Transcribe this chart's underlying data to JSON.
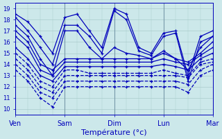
{
  "title": "",
  "xlabel": "Température (°c)",
  "ylabel": "",
  "xlim": [
    0,
    96
  ],
  "ylim": [
    9.5,
    19.5
  ],
  "yticks": [
    10,
    11,
    12,
    13,
    14,
    15,
    16,
    17,
    18,
    19
  ],
  "xtick_positions": [
    0,
    24,
    48,
    72,
    96
  ],
  "xtick_labels": [
    "Ven",
    "Sam",
    "Dim",
    "Lun",
    "Mar"
  ],
  "bg_color": "#cce8ea",
  "grid_color": "#aacccc",
  "line_color": "#0000bb",
  "day_boundaries": [
    0,
    24,
    48,
    72,
    96
  ],
  "series": [
    {
      "x": [
        0,
        6,
        12,
        18,
        24,
        30,
        36,
        42,
        48,
        54,
        60,
        66,
        72,
        78,
        84,
        90,
        96
      ],
      "y": [
        18.5,
        17.8,
        16.5,
        15.0,
        18.2,
        18.5,
        17.0,
        15.5,
        19.0,
        18.5,
        15.5,
        15.0,
        16.8,
        17.0,
        13.0,
        16.5,
        17.0
      ],
      "ls": "-",
      "lw": 0.9
    },
    {
      "x": [
        0,
        6,
        12,
        18,
        24,
        30,
        36,
        42,
        48,
        54,
        60,
        66,
        72,
        78,
        84,
        90,
        96
      ],
      "y": [
        18.2,
        17.0,
        15.5,
        14.0,
        17.5,
        17.5,
        16.5,
        15.0,
        18.8,
        18.0,
        15.2,
        14.8,
        16.5,
        16.8,
        12.5,
        16.0,
        16.5
      ],
      "ls": "-",
      "lw": 0.9
    },
    {
      "x": [
        0,
        6,
        12,
        18,
        24,
        30,
        36,
        42,
        48,
        54,
        60,
        66,
        72,
        78,
        84,
        90,
        96
      ],
      "y": [
        17.5,
        16.5,
        14.5,
        13.0,
        17.0,
        17.0,
        15.5,
        14.5,
        15.5,
        15.0,
        14.8,
        14.5,
        15.2,
        14.5,
        13.5,
        15.5,
        16.5
      ],
      "ls": "-",
      "lw": 0.9
    },
    {
      "x": [
        0,
        6,
        12,
        18,
        24,
        30,
        36,
        42,
        48,
        54,
        60,
        66,
        72,
        78,
        84,
        90,
        96
      ],
      "y": [
        17.0,
        16.0,
        14.0,
        13.5,
        14.5,
        14.5,
        14.5,
        14.5,
        14.5,
        14.5,
        14.5,
        14.5,
        15.0,
        14.5,
        14.2,
        15.0,
        16.0
      ],
      "ls": "-",
      "lw": 0.9
    },
    {
      "x": [
        0,
        6,
        12,
        18,
        24,
        30,
        36,
        42,
        48,
        54,
        60,
        66,
        72,
        78,
        84,
        90,
        96
      ],
      "y": [
        16.5,
        15.5,
        13.5,
        13.0,
        14.2,
        14.2,
        14.2,
        14.2,
        14.2,
        14.2,
        14.2,
        14.2,
        14.5,
        14.2,
        14.0,
        14.8,
        15.5
      ],
      "ls": "-",
      "lw": 0.9
    },
    {
      "x": [
        0,
        6,
        12,
        18,
        24,
        30,
        36,
        42,
        48,
        54,
        60,
        66,
        72,
        78,
        84,
        90,
        96
      ],
      "y": [
        15.5,
        14.5,
        13.0,
        12.5,
        13.8,
        13.8,
        13.8,
        13.8,
        13.8,
        13.8,
        13.8,
        13.8,
        14.0,
        13.8,
        13.5,
        14.5,
        15.0
      ],
      "ls": "-",
      "lw": 0.9
    },
    {
      "x": [
        0,
        6,
        12,
        18,
        24,
        30,
        36,
        42,
        48,
        54,
        60,
        66,
        72,
        78,
        84,
        90,
        96
      ],
      "y": [
        15.0,
        14.0,
        12.5,
        12.0,
        13.5,
        13.5,
        13.2,
        13.2,
        13.2,
        13.2,
        13.2,
        13.2,
        13.5,
        13.2,
        13.0,
        14.2,
        14.5
      ],
      "ls": "--",
      "lw": 0.9
    },
    {
      "x": [
        0,
        6,
        12,
        18,
        24,
        30,
        36,
        42,
        48,
        54,
        60,
        66,
        72,
        78,
        84,
        90,
        96
      ],
      "y": [
        14.5,
        13.5,
        12.0,
        11.5,
        13.0,
        13.0,
        13.0,
        13.0,
        13.0,
        13.0,
        13.0,
        13.0,
        13.0,
        13.0,
        12.8,
        14.0,
        14.2
      ],
      "ls": "--",
      "lw": 0.9
    },
    {
      "x": [
        0,
        6,
        12,
        18,
        24,
        30,
        36,
        42,
        48,
        54,
        60,
        66,
        72,
        78,
        84,
        90,
        96
      ],
      "y": [
        14.0,
        13.0,
        11.5,
        11.0,
        12.5,
        12.5,
        12.5,
        12.5,
        12.5,
        12.5,
        12.5,
        12.5,
        12.5,
        12.5,
        12.2,
        13.5,
        14.0
      ],
      "ls": "--",
      "lw": 0.9
    },
    {
      "x": [
        0,
        6,
        12,
        18,
        24,
        30,
        36,
        42,
        48,
        54,
        60,
        66,
        72,
        78,
        84,
        90,
        96
      ],
      "y": [
        13.5,
        12.5,
        11.0,
        10.2,
        12.0,
        12.0,
        12.0,
        12.0,
        12.0,
        12.0,
        12.0,
        12.0,
        12.0,
        12.0,
        11.5,
        13.0,
        13.5
      ],
      "ls": "--",
      "lw": 0.9
    }
  ]
}
